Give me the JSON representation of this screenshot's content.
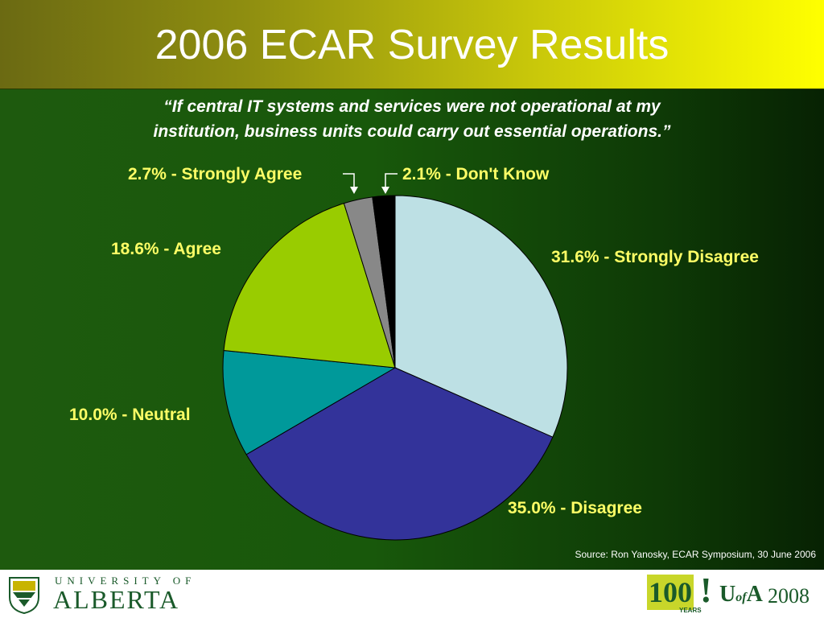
{
  "slide": {
    "title": "2006 ECAR Survey Results",
    "quote_line1": "“If central IT systems and services were not operational at my",
    "quote_line2": "institution, business units could carry out essential operations.”",
    "source": "Source: Ron Yanosky, ECAR Symposium, 30 June 2006"
  },
  "footer": {
    "ua_line1": "UNIVERSITY OF",
    "ua_line2": "ALBERTA",
    "centennial_number": "100",
    "centennial_mark": "!",
    "centennial_years": "YEARS",
    "ua_short_u": "U",
    "ua_short_of": "of",
    "ua_short_a": "A",
    "ua_year": "2008"
  },
  "chart_data": {
    "type": "pie",
    "title": "",
    "slices": [
      {
        "label": "31.6% - Strongly Disagree",
        "value": 31.6,
        "color": "#bde0e4"
      },
      {
        "label": "35.0% - Disagree",
        "value": 35.0,
        "color": "#33339a"
      },
      {
        "label": "10.0% - Neutral",
        "value": 10.0,
        "color": "#00999a"
      },
      {
        "label": "18.6% - Agree",
        "value": 18.6,
        "color": "#99cc00"
      },
      {
        "label": "2.7% - Strongly Agree",
        "value": 2.7,
        "color": "#888888"
      },
      {
        "label": "2.1% - Don't Know",
        "value": 2.1,
        "color": "#000000"
      }
    ],
    "start": "12 o'clock",
    "direction": "clockwise"
  },
  "colors": {
    "label": "#ffff66",
    "title_text": "#ffffff",
    "background_green": "#18580b"
  }
}
